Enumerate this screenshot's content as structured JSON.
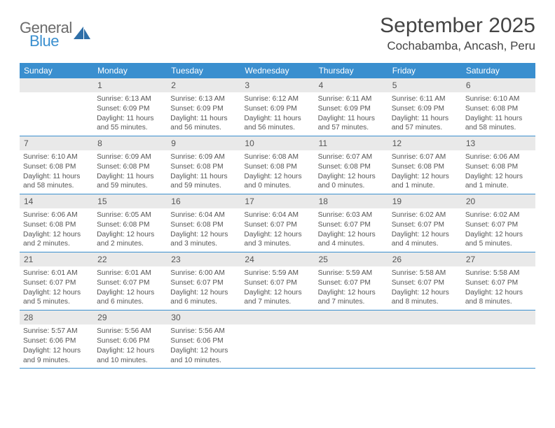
{
  "logo": {
    "word1": "General",
    "word2": "Blue",
    "icon_color": "#2f6fa8"
  },
  "title": {
    "month": "September 2025",
    "location": "Cochabamba, Ancash, Peru"
  },
  "colors": {
    "header_bg": "#3a8fcf",
    "header_text": "#ffffff",
    "daynum_bg": "#e9e9e9",
    "text": "#555555",
    "rule": "#3a8fcf"
  },
  "dayHeaders": [
    "Sunday",
    "Monday",
    "Tuesday",
    "Wednesday",
    "Thursday",
    "Friday",
    "Saturday"
  ],
  "weeks": [
    [
      {
        "n": "",
        "sunrise": "",
        "sunset": "",
        "daylight1": "",
        "daylight2": ""
      },
      {
        "n": "1",
        "sunrise": "Sunrise: 6:13 AM",
        "sunset": "Sunset: 6:09 PM",
        "daylight1": "Daylight: 11 hours",
        "daylight2": "and 55 minutes."
      },
      {
        "n": "2",
        "sunrise": "Sunrise: 6:13 AM",
        "sunset": "Sunset: 6:09 PM",
        "daylight1": "Daylight: 11 hours",
        "daylight2": "and 56 minutes."
      },
      {
        "n": "3",
        "sunrise": "Sunrise: 6:12 AM",
        "sunset": "Sunset: 6:09 PM",
        "daylight1": "Daylight: 11 hours",
        "daylight2": "and 56 minutes."
      },
      {
        "n": "4",
        "sunrise": "Sunrise: 6:11 AM",
        "sunset": "Sunset: 6:09 PM",
        "daylight1": "Daylight: 11 hours",
        "daylight2": "and 57 minutes."
      },
      {
        "n": "5",
        "sunrise": "Sunrise: 6:11 AM",
        "sunset": "Sunset: 6:09 PM",
        "daylight1": "Daylight: 11 hours",
        "daylight2": "and 57 minutes."
      },
      {
        "n": "6",
        "sunrise": "Sunrise: 6:10 AM",
        "sunset": "Sunset: 6:08 PM",
        "daylight1": "Daylight: 11 hours",
        "daylight2": "and 58 minutes."
      }
    ],
    [
      {
        "n": "7",
        "sunrise": "Sunrise: 6:10 AM",
        "sunset": "Sunset: 6:08 PM",
        "daylight1": "Daylight: 11 hours",
        "daylight2": "and 58 minutes."
      },
      {
        "n": "8",
        "sunrise": "Sunrise: 6:09 AM",
        "sunset": "Sunset: 6:08 PM",
        "daylight1": "Daylight: 11 hours",
        "daylight2": "and 59 minutes."
      },
      {
        "n": "9",
        "sunrise": "Sunrise: 6:09 AM",
        "sunset": "Sunset: 6:08 PM",
        "daylight1": "Daylight: 11 hours",
        "daylight2": "and 59 minutes."
      },
      {
        "n": "10",
        "sunrise": "Sunrise: 6:08 AM",
        "sunset": "Sunset: 6:08 PM",
        "daylight1": "Daylight: 12 hours",
        "daylight2": "and 0 minutes."
      },
      {
        "n": "11",
        "sunrise": "Sunrise: 6:07 AM",
        "sunset": "Sunset: 6:08 PM",
        "daylight1": "Daylight: 12 hours",
        "daylight2": "and 0 minutes."
      },
      {
        "n": "12",
        "sunrise": "Sunrise: 6:07 AM",
        "sunset": "Sunset: 6:08 PM",
        "daylight1": "Daylight: 12 hours",
        "daylight2": "and 1 minute."
      },
      {
        "n": "13",
        "sunrise": "Sunrise: 6:06 AM",
        "sunset": "Sunset: 6:08 PM",
        "daylight1": "Daylight: 12 hours",
        "daylight2": "and 1 minute."
      }
    ],
    [
      {
        "n": "14",
        "sunrise": "Sunrise: 6:06 AM",
        "sunset": "Sunset: 6:08 PM",
        "daylight1": "Daylight: 12 hours",
        "daylight2": "and 2 minutes."
      },
      {
        "n": "15",
        "sunrise": "Sunrise: 6:05 AM",
        "sunset": "Sunset: 6:08 PM",
        "daylight1": "Daylight: 12 hours",
        "daylight2": "and 2 minutes."
      },
      {
        "n": "16",
        "sunrise": "Sunrise: 6:04 AM",
        "sunset": "Sunset: 6:08 PM",
        "daylight1": "Daylight: 12 hours",
        "daylight2": "and 3 minutes."
      },
      {
        "n": "17",
        "sunrise": "Sunrise: 6:04 AM",
        "sunset": "Sunset: 6:07 PM",
        "daylight1": "Daylight: 12 hours",
        "daylight2": "and 3 minutes."
      },
      {
        "n": "18",
        "sunrise": "Sunrise: 6:03 AM",
        "sunset": "Sunset: 6:07 PM",
        "daylight1": "Daylight: 12 hours",
        "daylight2": "and 4 minutes."
      },
      {
        "n": "19",
        "sunrise": "Sunrise: 6:02 AM",
        "sunset": "Sunset: 6:07 PM",
        "daylight1": "Daylight: 12 hours",
        "daylight2": "and 4 minutes."
      },
      {
        "n": "20",
        "sunrise": "Sunrise: 6:02 AM",
        "sunset": "Sunset: 6:07 PM",
        "daylight1": "Daylight: 12 hours",
        "daylight2": "and 5 minutes."
      }
    ],
    [
      {
        "n": "21",
        "sunrise": "Sunrise: 6:01 AM",
        "sunset": "Sunset: 6:07 PM",
        "daylight1": "Daylight: 12 hours",
        "daylight2": "and 5 minutes."
      },
      {
        "n": "22",
        "sunrise": "Sunrise: 6:01 AM",
        "sunset": "Sunset: 6:07 PM",
        "daylight1": "Daylight: 12 hours",
        "daylight2": "and 6 minutes."
      },
      {
        "n": "23",
        "sunrise": "Sunrise: 6:00 AM",
        "sunset": "Sunset: 6:07 PM",
        "daylight1": "Daylight: 12 hours",
        "daylight2": "and 6 minutes."
      },
      {
        "n": "24",
        "sunrise": "Sunrise: 5:59 AM",
        "sunset": "Sunset: 6:07 PM",
        "daylight1": "Daylight: 12 hours",
        "daylight2": "and 7 minutes."
      },
      {
        "n": "25",
        "sunrise": "Sunrise: 5:59 AM",
        "sunset": "Sunset: 6:07 PM",
        "daylight1": "Daylight: 12 hours",
        "daylight2": "and 7 minutes."
      },
      {
        "n": "26",
        "sunrise": "Sunrise: 5:58 AM",
        "sunset": "Sunset: 6:07 PM",
        "daylight1": "Daylight: 12 hours",
        "daylight2": "and 8 minutes."
      },
      {
        "n": "27",
        "sunrise": "Sunrise: 5:58 AM",
        "sunset": "Sunset: 6:07 PM",
        "daylight1": "Daylight: 12 hours",
        "daylight2": "and 8 minutes."
      }
    ],
    [
      {
        "n": "28",
        "sunrise": "Sunrise: 5:57 AM",
        "sunset": "Sunset: 6:06 PM",
        "daylight1": "Daylight: 12 hours",
        "daylight2": "and 9 minutes."
      },
      {
        "n": "29",
        "sunrise": "Sunrise: 5:56 AM",
        "sunset": "Sunset: 6:06 PM",
        "daylight1": "Daylight: 12 hours",
        "daylight2": "and 10 minutes."
      },
      {
        "n": "30",
        "sunrise": "Sunrise: 5:56 AM",
        "sunset": "Sunset: 6:06 PM",
        "daylight1": "Daylight: 12 hours",
        "daylight2": "and 10 minutes."
      },
      {
        "n": "",
        "sunrise": "",
        "sunset": "",
        "daylight1": "",
        "daylight2": ""
      },
      {
        "n": "",
        "sunrise": "",
        "sunset": "",
        "daylight1": "",
        "daylight2": ""
      },
      {
        "n": "",
        "sunrise": "",
        "sunset": "",
        "daylight1": "",
        "daylight2": ""
      },
      {
        "n": "",
        "sunrise": "",
        "sunset": "",
        "daylight1": "",
        "daylight2": ""
      }
    ]
  ]
}
